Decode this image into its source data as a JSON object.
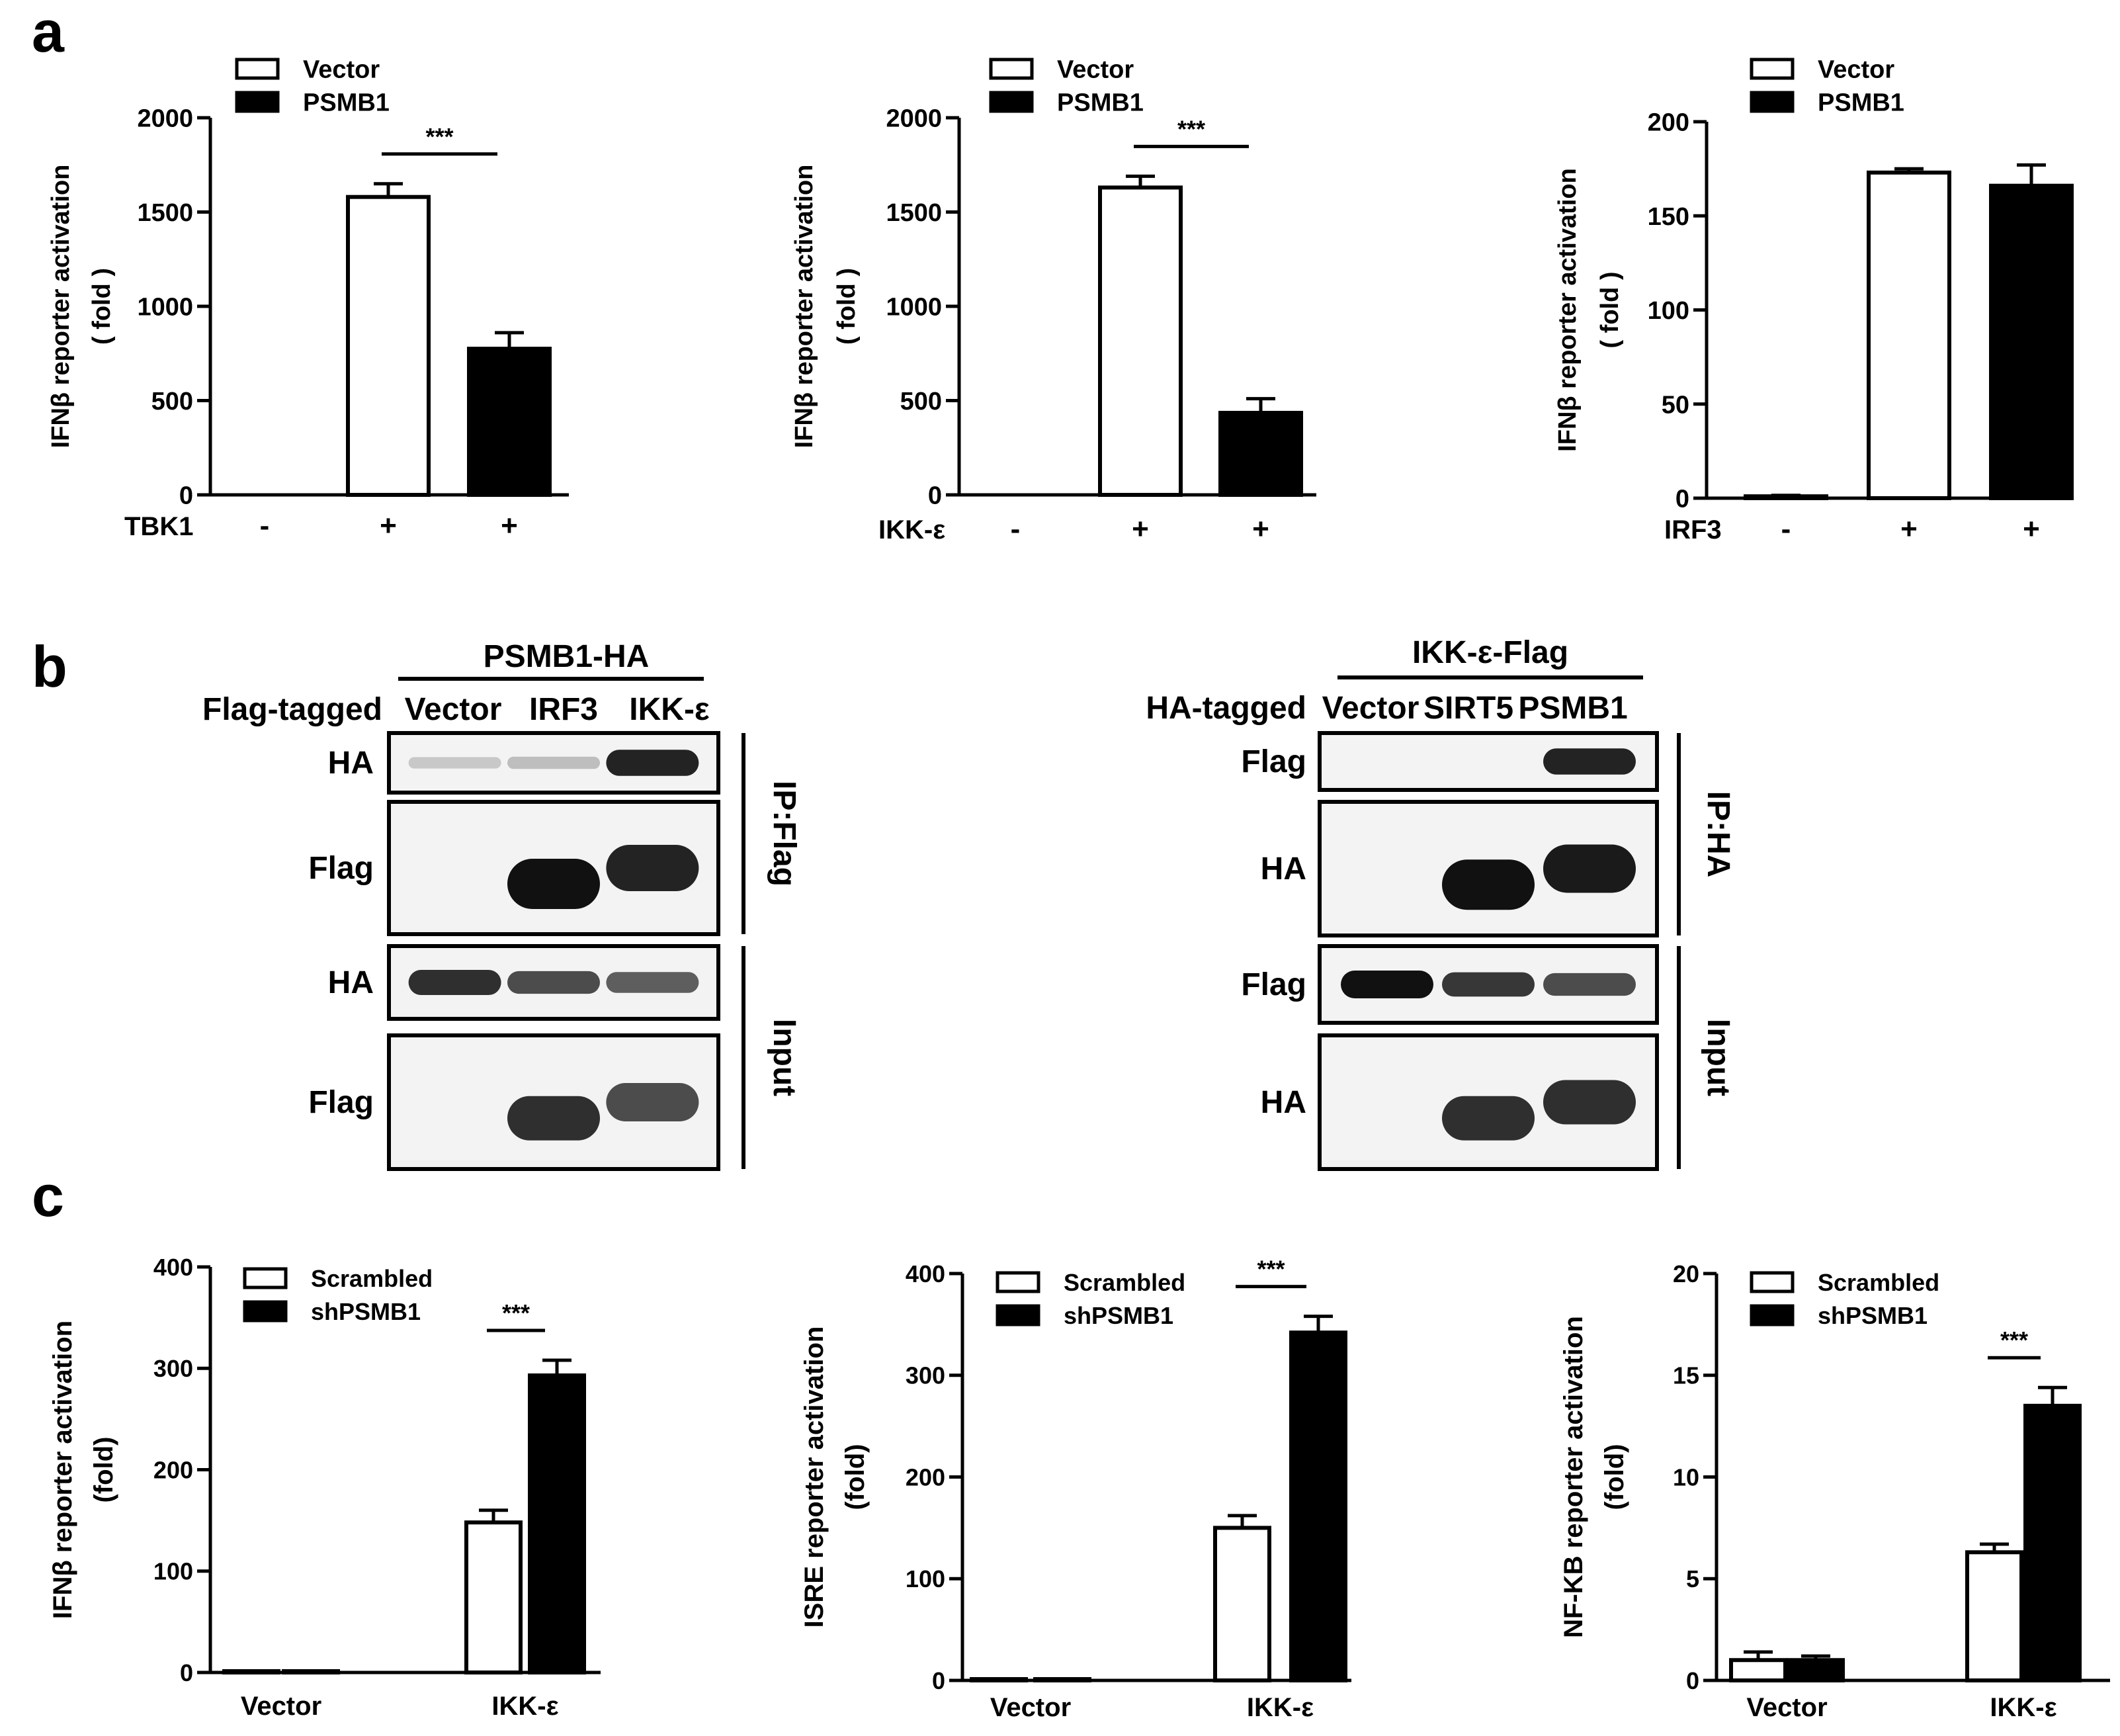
{
  "panel_labels": [
    "a",
    "b",
    "c"
  ],
  "chart_data": [
    {
      "type": "bar",
      "ylabel": "IFNβ reporter activation",
      "ylabel_unit": "( fold )",
      "ylim": [
        0,
        2000
      ],
      "yticks": [
        "0",
        "500",
        "1000",
        "1500",
        "2000"
      ],
      "row_label": "TBK1",
      "row_marks": [
        "-",
        "+",
        "+"
      ],
      "series": [
        {
          "name": "Vector",
          "fill": "#ffffff",
          "values": [
            0,
            1580,
            null
          ],
          "errors": [
            0,
            70,
            null
          ]
        },
        {
          "name": "PSMB1",
          "fill": "#000000",
          "values": [
            null,
            null,
            775
          ],
          "errors": [
            null,
            null,
            85
          ]
        }
      ],
      "significance": "***"
    },
    {
      "type": "bar",
      "ylabel": "IFNβ reporter activation",
      "ylabel_unit": "( fold )",
      "ylim": [
        0,
        2000
      ],
      "yticks": [
        "0",
        "500",
        "1000",
        "1500",
        "2000"
      ],
      "row_label": "IKK-ε",
      "row_marks": [
        "-",
        "+",
        "+"
      ],
      "series": [
        {
          "name": "Vector",
          "fill": "#ffffff",
          "values": [
            0,
            1630,
            null
          ],
          "errors": [
            0,
            60,
            null
          ]
        },
        {
          "name": "PSMB1",
          "fill": "#000000",
          "values": [
            null,
            null,
            435
          ],
          "errors": [
            null,
            null,
            75
          ]
        }
      ],
      "significance": "***"
    },
    {
      "type": "bar",
      "ylabel": "IFNβ reporter activation",
      "ylabel_unit": "( fold )",
      "ylim": [
        0,
        200
      ],
      "yticks": [
        "0",
        "50",
        "100",
        "150",
        "200"
      ],
      "row_label": "IRF3",
      "row_marks": [
        "-",
        "+",
        "+"
      ],
      "series": [
        {
          "name": "Vector",
          "fill": "#ffffff",
          "values": [
            1,
            173,
            null
          ],
          "errors": [
            0.5,
            2,
            null
          ]
        },
        {
          "name": "PSMB1",
          "fill": "#000000",
          "values": [
            null,
            null,
            166
          ],
          "errors": [
            null,
            null,
            11
          ]
        }
      ],
      "significance": ""
    },
    {
      "type": "bar",
      "ylabel": "IFNβ reporter activation",
      "ylabel_unit": "(fold)",
      "ylim": [
        0,
        400
      ],
      "yticks": [
        "0",
        "100",
        "200",
        "300",
        "400"
      ],
      "categories": [
        "Vector",
        "IKK-ε"
      ],
      "series": [
        {
          "name": "Scrambled",
          "fill": "#ffffff",
          "values": [
            1,
            148
          ],
          "errors": [
            0.5,
            12
          ]
        },
        {
          "name": "shPSMB1",
          "fill": "#000000",
          "values": [
            1,
            293
          ],
          "errors": [
            0.5,
            15
          ]
        }
      ],
      "significance": "***"
    },
    {
      "type": "bar",
      "ylabel": "ISRE reporter activation",
      "ylabel_unit": "(fold)",
      "ylim": [
        0,
        400
      ],
      "yticks": [
        "0",
        "100",
        "200",
        "300",
        "400"
      ],
      "categories": [
        "Vector",
        "IKK-ε"
      ],
      "series": [
        {
          "name": "Scrambled",
          "fill": "#ffffff",
          "values": [
            1,
            150
          ],
          "errors": [
            0.5,
            12
          ]
        },
        {
          "name": "shPSMB1",
          "fill": "#000000",
          "values": [
            1,
            342
          ],
          "errors": [
            0.5,
            16
          ]
        }
      ],
      "significance": "***"
    },
    {
      "type": "bar",
      "ylabel": "NF-KB reporter activation",
      "ylabel_unit": "(fold)",
      "ylim": [
        0,
        20
      ],
      "yticks": [
        "0",
        "5",
        "10",
        "15",
        "20"
      ],
      "categories": [
        "Vector",
        "IKK-ε"
      ],
      "series": [
        {
          "name": "Scrambled",
          "fill": "#ffffff",
          "values": [
            1.0,
            6.3
          ],
          "errors": [
            0.4,
            0.4
          ]
        },
        {
          "name": "shPSMB1",
          "fill": "#000000",
          "values": [
            1.0,
            13.5
          ],
          "errors": [
            0.2,
            0.9
          ]
        }
      ],
      "significance": "***"
    }
  ],
  "blots": [
    {
      "header": "PSMB1-HA",
      "tag_label": "Flag-tagged",
      "lanes": [
        "Vector",
        "IRF3",
        "IKK-ε"
      ],
      "groups": [
        {
          "label": "IP:Flag",
          "rows": [
            {
              "label": "HA",
              "bands": [
                0.05,
                0.1,
                0.9
              ]
            },
            {
              "label": "Flag",
              "bands": [
                0,
                1.0,
                0.9
              ]
            }
          ]
        },
        {
          "label": "Input",
          "rows": [
            {
              "label": "HA",
              "bands": [
                0.85,
                0.7,
                0.6
              ]
            },
            {
              "label": "Flag",
              "bands": [
                0,
                0.85,
                0.7
              ]
            }
          ]
        }
      ]
    },
    {
      "header": "IKK-ε-Flag",
      "tag_label": "HA-tagged",
      "lanes": [
        "Vector",
        "SIRT5",
        "PSMB1"
      ],
      "groups": [
        {
          "label": "IP:HA",
          "rows": [
            {
              "label": "Flag",
              "bands": [
                0,
                0,
                0.9
              ]
            },
            {
              "label": "HA",
              "bands": [
                0,
                1.0,
                0.95
              ]
            }
          ]
        },
        {
          "label": "Input",
          "rows": [
            {
              "label": "Flag",
              "bands": [
                1.0,
                0.8,
                0.7
              ]
            },
            {
              "label": "HA",
              "bands": [
                0,
                0.85,
                0.85
              ]
            }
          ]
        }
      ]
    }
  ]
}
